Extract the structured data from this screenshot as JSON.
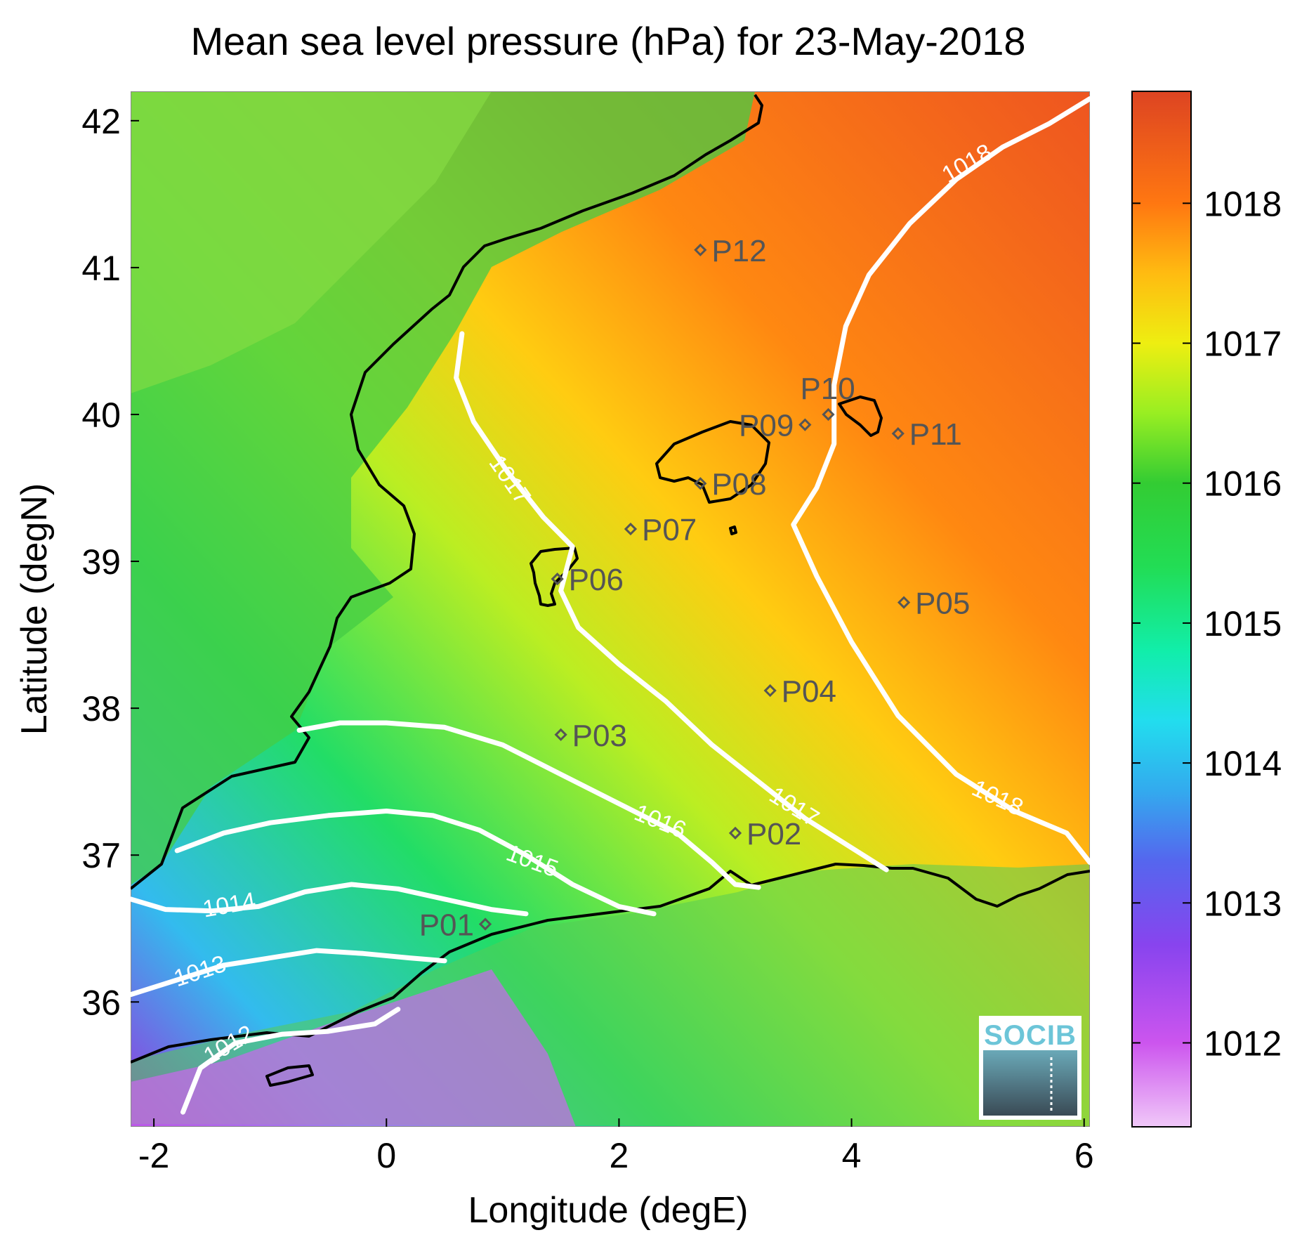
{
  "map": {
    "title": "Mean sea level pressure (hPa) for 23-May-2018",
    "xlabel": "Longitude (degE)",
    "ylabel": "Latitude (degN)",
    "xlim": [
      -2.2,
      6.05
    ],
    "ylim": [
      35.15,
      42.2
    ],
    "xticks": [
      {
        "value": -2,
        "label": "-2"
      },
      {
        "value": 0,
        "label": "0"
      },
      {
        "value": 2,
        "label": "2"
      },
      {
        "value": 4,
        "label": "4"
      },
      {
        "value": 6,
        "label": "6"
      }
    ],
    "yticks": [
      {
        "value": 36,
        "label": "36"
      },
      {
        "value": 37,
        "label": "37"
      },
      {
        "value": 38,
        "label": "38"
      },
      {
        "value": 39,
        "label": "39"
      },
      {
        "value": 40,
        "label": "40"
      },
      {
        "value": 41,
        "label": "41"
      },
      {
        "value": 42,
        "label": "42"
      }
    ],
    "stations": [
      {
        "label": "P01",
        "lon": 0.85,
        "lat": 36.53,
        "side": "left"
      },
      {
        "label": "P02",
        "lon": 3.0,
        "lat": 37.15,
        "side": "right"
      },
      {
        "label": "P03",
        "lon": 1.5,
        "lat": 37.82,
        "side": "right"
      },
      {
        "label": "P04",
        "lon": 3.3,
        "lat": 38.12,
        "side": "right"
      },
      {
        "label": "P05",
        "lon": 4.45,
        "lat": 38.72,
        "side": "right"
      },
      {
        "label": "P06",
        "lon": 1.47,
        "lat": 38.88,
        "side": "right"
      },
      {
        "label": "P07",
        "lon": 2.1,
        "lat": 39.22,
        "side": "right"
      },
      {
        "label": "P08",
        "lon": 2.7,
        "lat": 39.53,
        "side": "right"
      },
      {
        "label": "P09",
        "lon": 3.6,
        "lat": 39.93,
        "side": "left"
      },
      {
        "label": "P10",
        "lon": 3.8,
        "lat": 40.0,
        "side": "top"
      },
      {
        "label": "P11",
        "lon": 4.4,
        "lat": 39.87,
        "side": "right"
      },
      {
        "label": "P12",
        "lon": 2.7,
        "lat": 41.12,
        "side": "right"
      }
    ],
    "contours": [
      {
        "level": 1012,
        "label": "1012",
        "points": [
          [
            -1.75,
            35.25
          ],
          [
            -1.6,
            35.55
          ],
          [
            -1.3,
            35.72
          ],
          [
            -0.9,
            35.78
          ],
          [
            -0.5,
            35.8
          ],
          [
            -0.1,
            35.85
          ],
          [
            0.1,
            35.95
          ]
        ],
        "labels": [
          {
            "lon": -1.35,
            "lat": 35.7,
            "rot": -30
          }
        ]
      },
      {
        "level": 1013,
        "label": "1013",
        "points": [
          [
            -2.2,
            36.05
          ],
          [
            -1.8,
            36.15
          ],
          [
            -1.4,
            36.25
          ],
          [
            -1.0,
            36.3
          ],
          [
            -0.6,
            36.35
          ],
          [
            -0.2,
            36.33
          ],
          [
            0.2,
            36.3
          ],
          [
            0.5,
            36.28
          ]
        ],
        "labels": [
          {
            "lon": -1.6,
            "lat": 36.2,
            "rot": -18
          }
        ]
      },
      {
        "level": 1014,
        "label": "1014",
        "points": [
          [
            -2.2,
            36.7
          ],
          [
            -1.9,
            36.63
          ],
          [
            -1.5,
            36.62
          ],
          [
            -1.1,
            36.65
          ],
          [
            -0.7,
            36.75
          ],
          [
            -0.3,
            36.8
          ],
          [
            0.1,
            36.77
          ],
          [
            0.5,
            36.7
          ],
          [
            0.9,
            36.63
          ],
          [
            1.2,
            36.6
          ]
        ],
        "labels": [
          {
            "lon": -1.35,
            "lat": 36.65,
            "rot": -10
          }
        ]
      },
      {
        "level": 1015,
        "label": "1015",
        "points": [
          [
            -1.8,
            37.03
          ],
          [
            -1.4,
            37.15
          ],
          [
            -1.0,
            37.22
          ],
          [
            -0.5,
            37.27
          ],
          [
            0.0,
            37.3
          ],
          [
            0.4,
            37.27
          ],
          [
            0.8,
            37.17
          ],
          [
            1.2,
            37.0
          ],
          [
            1.6,
            36.8
          ],
          [
            2.0,
            36.65
          ],
          [
            2.3,
            36.6
          ]
        ],
        "labels": [
          {
            "lon": 1.25,
            "lat": 36.95,
            "rot": 20
          }
        ]
      },
      {
        "level": 1016,
        "label": "1016",
        "points": [
          [
            -0.75,
            37.85
          ],
          [
            -0.4,
            37.9
          ],
          [
            0.0,
            37.9
          ],
          [
            0.5,
            37.87
          ],
          [
            1.0,
            37.75
          ],
          [
            1.5,
            37.55
          ],
          [
            2.0,
            37.35
          ],
          [
            2.5,
            37.15
          ],
          [
            2.8,
            36.95
          ],
          [
            3.0,
            36.8
          ],
          [
            3.2,
            36.78
          ]
        ],
        "labels": [
          {
            "lon": 2.35,
            "lat": 37.22,
            "rot": 22
          }
        ]
      },
      {
        "level": 1017,
        "label": "1017",
        "points": [
          [
            0.65,
            40.55
          ],
          [
            0.6,
            40.25
          ],
          [
            0.75,
            39.95
          ],
          [
            1.05,
            39.6
          ],
          [
            1.35,
            39.3
          ],
          [
            1.6,
            39.1
          ],
          [
            1.5,
            38.8
          ],
          [
            1.65,
            38.55
          ],
          [
            2.0,
            38.3
          ],
          [
            2.4,
            38.05
          ],
          [
            2.8,
            37.75
          ],
          [
            3.2,
            37.5
          ],
          [
            3.6,
            37.25
          ],
          [
            4.0,
            37.05
          ],
          [
            4.3,
            36.9
          ]
        ],
        "labels": [
          {
            "lon": 1.05,
            "lat": 39.55,
            "rot": 55
          },
          {
            "lon": 3.5,
            "lat": 37.32,
            "rot": 32
          }
        ]
      },
      {
        "level": 1018,
        "label": "1018",
        "points": [
          [
            6.05,
            42.15
          ],
          [
            5.7,
            41.98
          ],
          [
            5.3,
            41.82
          ],
          [
            4.9,
            41.6
          ],
          [
            4.5,
            41.3
          ],
          [
            4.15,
            40.95
          ],
          [
            3.95,
            40.6
          ],
          [
            3.85,
            40.2
          ],
          [
            3.85,
            39.8
          ],
          [
            3.7,
            39.5
          ],
          [
            3.5,
            39.25
          ],
          [
            3.7,
            38.9
          ],
          [
            4.0,
            38.45
          ],
          [
            4.4,
            37.95
          ],
          [
            4.9,
            37.55
          ],
          [
            5.4,
            37.3
          ],
          [
            5.85,
            37.15
          ],
          [
            6.05,
            36.95
          ]
        ],
        "labels": [
          {
            "lon": 5.0,
            "lat": 41.7,
            "rot": -30
          },
          {
            "lon": 5.25,
            "lat": 37.38,
            "rot": 25
          }
        ]
      }
    ],
    "colors": {
      "contour": "#ffffff",
      "coastline": "#000000",
      "station": "#555555"
    }
  },
  "colorbar": {
    "vmin": 1011.4,
    "vmax": 1018.8,
    "ticks": [
      {
        "value": 1012,
        "label": "1012"
      },
      {
        "value": 1013,
        "label": "1013"
      },
      {
        "value": 1014,
        "label": "1014"
      },
      {
        "value": 1015,
        "label": "1015"
      },
      {
        "value": 1016,
        "label": "1016"
      },
      {
        "value": 1017,
        "label": "1017"
      },
      {
        "value": 1018,
        "label": "1018"
      }
    ],
    "stops": [
      {
        "value": 1011.4,
        "color": "#f0c8f8"
      },
      {
        "value": 1012.0,
        "color": "#cc55ee"
      },
      {
        "value": 1012.7,
        "color": "#8844ee"
      },
      {
        "value": 1013.3,
        "color": "#5566ee"
      },
      {
        "value": 1013.8,
        "color": "#33aaee"
      },
      {
        "value": 1014.3,
        "color": "#22ddee"
      },
      {
        "value": 1014.8,
        "color": "#11eeaa"
      },
      {
        "value": 1015.4,
        "color": "#22dd55"
      },
      {
        "value": 1016.0,
        "color": "#33cc33"
      },
      {
        "value": 1016.5,
        "color": "#99ee22"
      },
      {
        "value": 1017.0,
        "color": "#eeee11"
      },
      {
        "value": 1017.5,
        "color": "#ffbb11"
      },
      {
        "value": 1018.0,
        "color": "#ff7711"
      },
      {
        "value": 1018.8,
        "color": "#dd4422"
      }
    ]
  },
  "logo": {
    "text": "SOCIB"
  }
}
